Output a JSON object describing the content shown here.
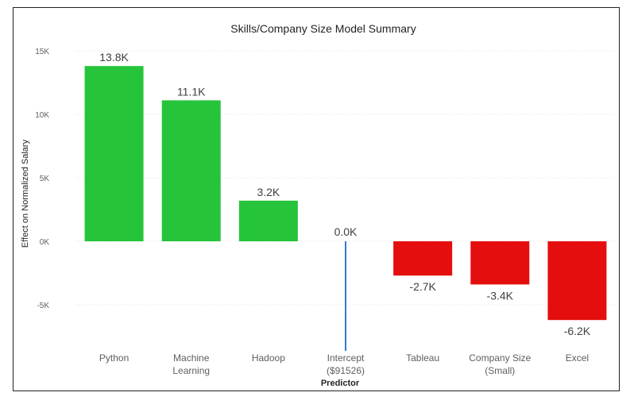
{
  "chart_data": {
    "type": "bar",
    "title": "Skills/Company Size Model Summary",
    "xlabel": "Predictor",
    "ylabel": "Effect on Normalized Salary",
    "categories": [
      [
        "Python"
      ],
      [
        "Machine",
        "Learning"
      ],
      [
        "Hadoop"
      ],
      [
        "Intercept",
        "($91526)"
      ],
      [
        "Tableau"
      ],
      [
        "Company Size",
        "(Small)"
      ],
      [
        "Excel"
      ]
    ],
    "values": [
      13800,
      11100,
      3200,
      0,
      -2700,
      -3400,
      -6200
    ],
    "data_labels": [
      "13.8K",
      "11.1K",
      "3.2K",
      "0.0K",
      "-2.7K",
      "-3.4K",
      "-6.2K"
    ],
    "yticks": [
      -5000,
      0,
      5000,
      10000,
      15000
    ],
    "ytick_labels": [
      "-5K",
      "0K",
      "5K",
      "10K",
      "15K"
    ],
    "ylim": [
      -8000,
      15000
    ],
    "grid": true,
    "colors": {
      "positive": "#26c43a",
      "negative": "#e50e0e",
      "zero_line": "#2e7cd0"
    }
  }
}
